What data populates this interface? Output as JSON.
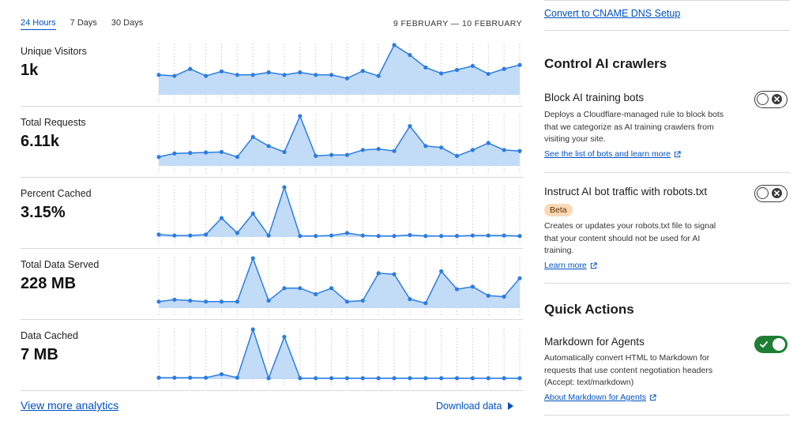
{
  "analytics": {
    "tabs": [
      {
        "label": "24 Hours",
        "active": true
      },
      {
        "label": "7 Days",
        "active": false
      },
      {
        "label": "30 Days",
        "active": false
      }
    ],
    "date_range": "9 FEBRUARY — 10 FEBRUARY",
    "metrics": [
      {
        "label": "Unique Visitors",
        "value": "1k"
      },
      {
        "label": "Total Requests",
        "value": "6.11k"
      },
      {
        "label": "Percent Cached",
        "value": "3.15%"
      },
      {
        "label": "Total Data Served",
        "value": "228 MB"
      },
      {
        "label": "Data Cached",
        "value": "7 MB"
      }
    ],
    "view_more": "View more analytics",
    "download": "Download data"
  },
  "chart_data": [
    {
      "type": "area",
      "name": "Unique Visitors",
      "x": [
        1,
        2,
        3,
        4,
        5,
        6,
        7,
        8,
        9,
        10,
        11,
        12,
        13,
        14,
        15,
        16,
        17,
        18,
        19,
        20,
        21,
        22,
        23,
        24
      ],
      "values": [
        0.4,
        0.38,
        0.52,
        0.38,
        0.47,
        0.4,
        0.4,
        0.45,
        0.4,
        0.45,
        0.4,
        0.4,
        0.33,
        0.48,
        0.38,
        1.0,
        0.8,
        0.55,
        0.43,
        0.5,
        0.58,
        0.42,
        0.52,
        0.6
      ],
      "ylim": [
        0,
        1
      ]
    },
    {
      "type": "area",
      "name": "Total Requests",
      "x": [
        1,
        2,
        3,
        4,
        5,
        6,
        7,
        8,
        9,
        10,
        11,
        12,
        13,
        14,
        15,
        16,
        17,
        18,
        19,
        20,
        21,
        22,
        23,
        24
      ],
      "values": [
        0.18,
        0.25,
        0.26,
        0.27,
        0.28,
        0.18,
        0.58,
        0.4,
        0.28,
        1.0,
        0.2,
        0.22,
        0.22,
        0.32,
        0.34,
        0.3,
        0.8,
        0.4,
        0.37,
        0.2,
        0.32,
        0.46,
        0.32,
        0.3
      ],
      "ylim": [
        0,
        1
      ]
    },
    {
      "type": "area",
      "name": "Percent Cached",
      "x": [
        1,
        2,
        3,
        4,
        5,
        6,
        7,
        8,
        9,
        10,
        11,
        12,
        13,
        14,
        15,
        16,
        17,
        18,
        19,
        20,
        21,
        22,
        23,
        24
      ],
      "values": [
        0.05,
        0.03,
        0.03,
        0.05,
        0.38,
        0.08,
        0.47,
        0.03,
        1.0,
        0.02,
        0.02,
        0.03,
        0.08,
        0.03,
        0.02,
        0.02,
        0.04,
        0.02,
        0.02,
        0.02,
        0.03,
        0.03,
        0.03,
        0.02
      ],
      "ylim": [
        0,
        1
      ]
    },
    {
      "type": "area",
      "name": "Total Data Served",
      "x": [
        1,
        2,
        3,
        4,
        5,
        6,
        7,
        8,
        9,
        10,
        11,
        12,
        13,
        14,
        15,
        16,
        17,
        18,
        19,
        20,
        21,
        22,
        23,
        24
      ],
      "values": [
        0.13,
        0.17,
        0.15,
        0.13,
        0.13,
        0.13,
        1.0,
        0.15,
        0.4,
        0.4,
        0.28,
        0.4,
        0.13,
        0.15,
        0.7,
        0.68,
        0.18,
        0.1,
        0.74,
        0.38,
        0.43,
        0.25,
        0.23,
        0.6
      ],
      "ylim": [
        0,
        1
      ]
    },
    {
      "type": "area",
      "name": "Data Cached",
      "x": [
        1,
        2,
        3,
        4,
        5,
        6,
        7,
        8,
        9,
        10,
        11,
        12,
        13,
        14,
        15,
        16,
        17,
        18,
        19,
        20,
        21,
        22,
        23,
        24
      ],
      "values": [
        0.03,
        0.03,
        0.03,
        0.03,
        0.1,
        0.03,
        1.0,
        0.02,
        0.85,
        0.02,
        0.02,
        0.02,
        0.02,
        0.02,
        0.02,
        0.02,
        0.02,
        0.02,
        0.02,
        0.02,
        0.02,
        0.02,
        0.02,
        0.02
      ],
      "ylim": [
        0,
        1
      ]
    }
  ],
  "colors": {
    "link": "#0051c3",
    "chart_fill": "#c2dbf7",
    "chart_line": "#2c7de0",
    "toggle_on": "#1e7e34",
    "badge_bg": "#fbd8b4"
  },
  "settings": {
    "cname_link": "Convert to CNAME DNS Setup",
    "crawlers_title": "Control AI crawlers",
    "block_bots": {
      "title": "Block AI training bots",
      "desc": "Deploys a Cloudflare-managed rule to block bots that we categorize as AI training crawlers from visiting your site.",
      "link": "See the list of bots and learn more",
      "enabled": false
    },
    "robots": {
      "title": "Instruct AI bot traffic with robots.txt",
      "badge": "Beta",
      "desc": "Creates or updates your robots.txt file to signal that your content should not be used for AI training.",
      "link": "Learn more",
      "enabled": false
    },
    "quick_actions_title": "Quick Actions",
    "markdown": {
      "title": "Markdown for Agents",
      "desc": "Automatically convert HTML to Markdown for requests that use content negotiation headers (Accept: text/markdown)",
      "link": "About Markdown for Agents",
      "enabled": true
    }
  }
}
